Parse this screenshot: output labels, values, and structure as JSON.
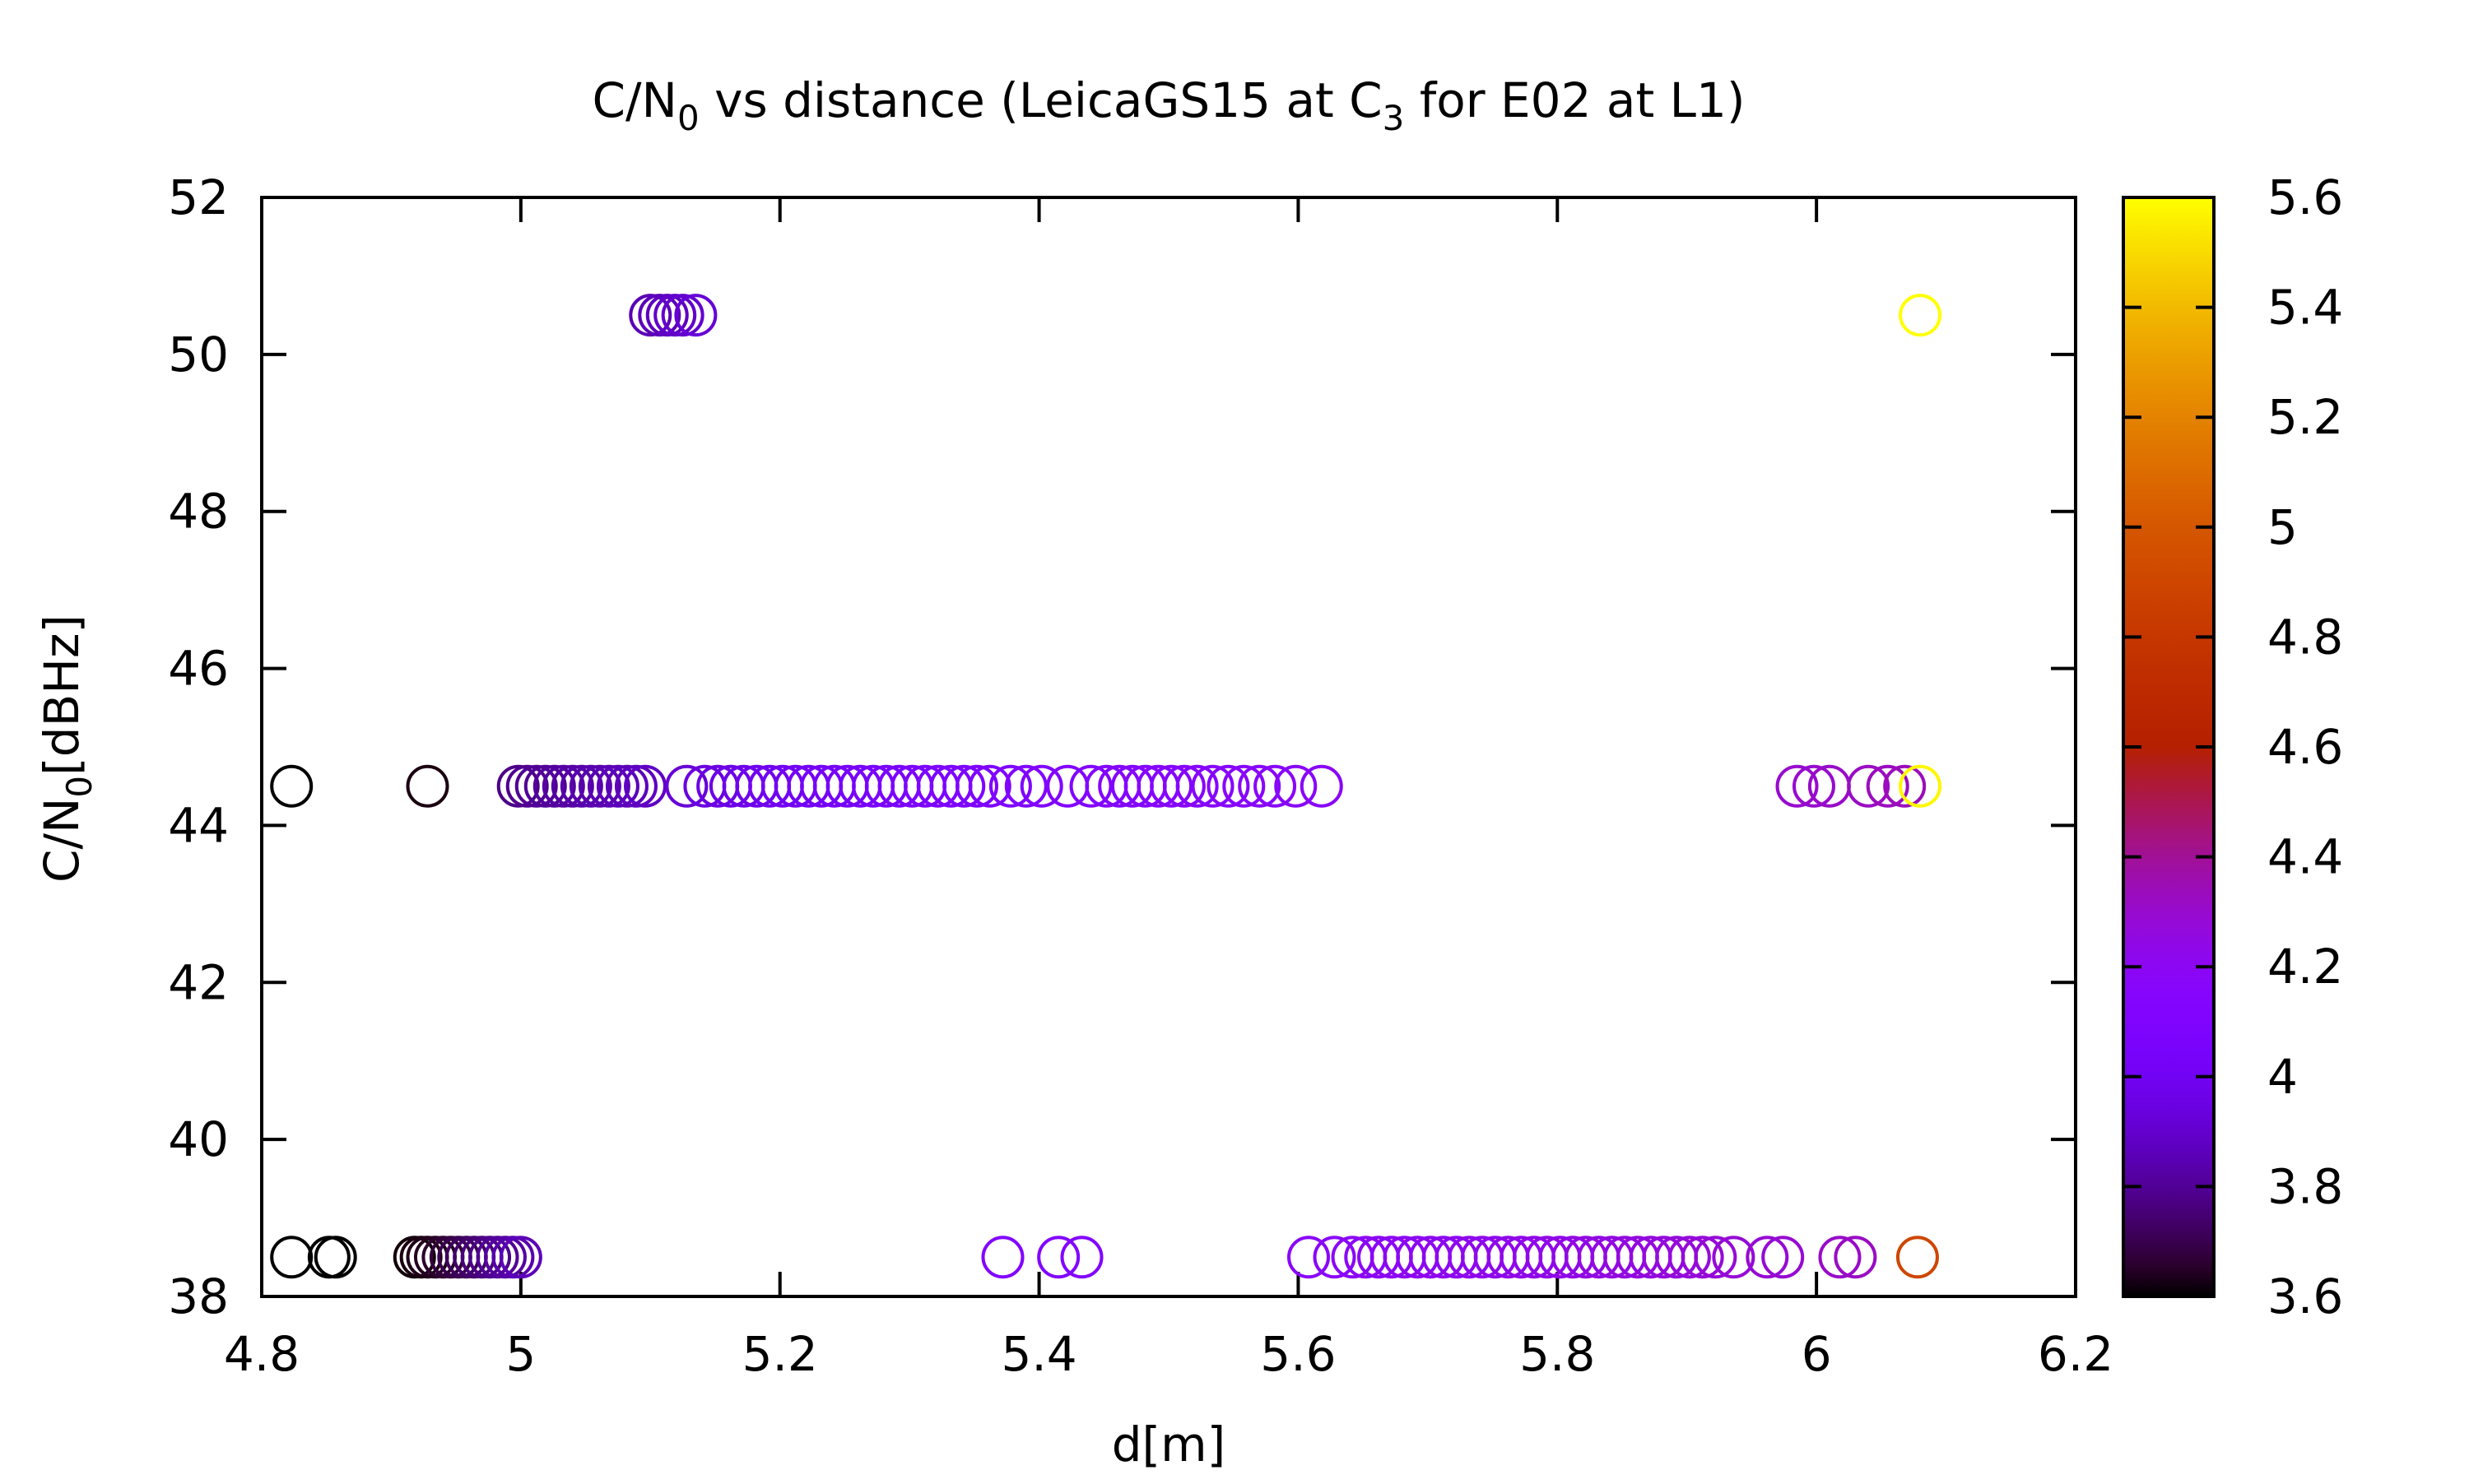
{
  "chart_data": {
    "type": "scatter",
    "title": {
      "prefix": "C/N",
      "sub1": "0",
      "middle": " vs distance (LeicaGS15 at C",
      "sub2": "3",
      "suffix": " for E02 at L1)"
    },
    "xlabel": "d[m]",
    "ylabel": {
      "prefix": "C/N",
      "sub": "0",
      "suffix": "[dBHz]"
    },
    "xlim": [
      4.8,
      6.2
    ],
    "ylim": [
      38,
      52
    ],
    "x_ticks": [
      4.8,
      5.0,
      5.2,
      5.4,
      5.6,
      5.8,
      6.0,
      6.2
    ],
    "x_tick_labels": [
      "4.8",
      "5",
      "5.2",
      "5.4",
      "5.6",
      "5.8",
      "6",
      "6.2"
    ],
    "y_ticks": [
      38,
      40,
      42,
      44,
      46,
      48,
      50,
      52
    ],
    "y_tick_labels": [
      "38",
      "40",
      "42",
      "44",
      "46",
      "48",
      "50",
      "52"
    ],
    "colorbar": {
      "range": [
        3.6,
        5.6
      ],
      "ticks": [
        3.6,
        3.8,
        4.0,
        4.2,
        4.4,
        4.6,
        4.8,
        5.0,
        5.2,
        5.4,
        5.6
      ],
      "tick_labels": [
        "3.6",
        "3.8",
        "4",
        "4.2",
        "4.4",
        "4.6",
        "4.8",
        "5",
        "5.2",
        "5.4",
        "5.6"
      ],
      "palette": "gnuplot (black-purple-red-yellow)"
    },
    "marker": "open circle",
    "grid": false,
    "legend": "none",
    "points": [
      {
        "x": 5.1,
        "y": 50.5,
        "c": 3.85
      },
      {
        "x": 5.107,
        "y": 50.5,
        "c": 3.86
      },
      {
        "x": 5.113,
        "y": 50.5,
        "c": 3.87
      },
      {
        "x": 5.119,
        "y": 50.5,
        "c": 3.89
      },
      {
        "x": 5.125,
        "y": 50.5,
        "c": 3.9
      },
      {
        "x": 5.135,
        "y": 50.5,
        "c": 3.92
      },
      {
        "x": 6.08,
        "y": 50.5,
        "c": 5.6
      },
      {
        "x": 4.823,
        "y": 44.5,
        "c": 3.6
      },
      {
        "x": 4.928,
        "y": 44.5,
        "c": 3.62
      },
      {
        "x": 4.998,
        "y": 44.5,
        "c": 3.78
      },
      {
        "x": 5.005,
        "y": 44.5,
        "c": 3.79
      },
      {
        "x": 5.012,
        "y": 44.5,
        "c": 3.8
      },
      {
        "x": 5.019,
        "y": 44.5,
        "c": 3.8
      },
      {
        "x": 5.026,
        "y": 44.5,
        "c": 3.81
      },
      {
        "x": 5.033,
        "y": 44.5,
        "c": 3.82
      },
      {
        "x": 5.04,
        "y": 44.5,
        "c": 3.82
      },
      {
        "x": 5.047,
        "y": 44.5,
        "c": 3.83
      },
      {
        "x": 5.054,
        "y": 44.5,
        "c": 3.84
      },
      {
        "x": 5.061,
        "y": 44.5,
        "c": 3.84
      },
      {
        "x": 5.068,
        "y": 44.5,
        "c": 3.85
      },
      {
        "x": 5.075,
        "y": 44.5,
        "c": 3.86
      },
      {
        "x": 5.082,
        "y": 44.5,
        "c": 3.86
      },
      {
        "x": 5.089,
        "y": 44.5,
        "c": 3.87
      },
      {
        "x": 5.096,
        "y": 44.5,
        "c": 3.88
      },
      {
        "x": 5.128,
        "y": 44.5,
        "c": 3.92
      },
      {
        "x": 5.142,
        "y": 44.5,
        "c": 3.94
      },
      {
        "x": 5.152,
        "y": 44.5,
        "c": 3.95
      },
      {
        "x": 5.162,
        "y": 44.5,
        "c": 3.96
      },
      {
        "x": 5.172,
        "y": 44.5,
        "c": 3.97
      },
      {
        "x": 5.182,
        "y": 44.5,
        "c": 3.98
      },
      {
        "x": 5.192,
        "y": 44.5,
        "c": 3.99
      },
      {
        "x": 5.202,
        "y": 44.5,
        "c": 4.0
      },
      {
        "x": 5.212,
        "y": 44.5,
        "c": 4.0
      },
      {
        "x": 5.222,
        "y": 44.5,
        "c": 4.01
      },
      {
        "x": 5.232,
        "y": 44.5,
        "c": 4.02
      },
      {
        "x": 5.242,
        "y": 44.5,
        "c": 4.03
      },
      {
        "x": 5.252,
        "y": 44.5,
        "c": 4.03
      },
      {
        "x": 5.262,
        "y": 44.5,
        "c": 4.04
      },
      {
        "x": 5.272,
        "y": 44.5,
        "c": 4.05
      },
      {
        "x": 5.282,
        "y": 44.5,
        "c": 4.05
      },
      {
        "x": 5.292,
        "y": 44.5,
        "c": 4.06
      },
      {
        "x": 5.302,
        "y": 44.5,
        "c": 4.07
      },
      {
        "x": 5.312,
        "y": 44.5,
        "c": 4.07
      },
      {
        "x": 5.322,
        "y": 44.5,
        "c": 4.08
      },
      {
        "x": 5.332,
        "y": 44.5,
        "c": 4.08
      },
      {
        "x": 5.342,
        "y": 44.5,
        "c": 4.09
      },
      {
        "x": 5.352,
        "y": 44.5,
        "c": 4.09
      },
      {
        "x": 5.362,
        "y": 44.5,
        "c": 4.1
      },
      {
        "x": 5.378,
        "y": 44.5,
        "c": 4.1
      },
      {
        "x": 5.39,
        "y": 44.5,
        "c": 4.11
      },
      {
        "x": 5.402,
        "y": 44.5,
        "c": 4.11
      },
      {
        "x": 5.422,
        "y": 44.5,
        "c": 4.12
      },
      {
        "x": 5.44,
        "y": 44.5,
        "c": 4.12
      },
      {
        "x": 5.452,
        "y": 44.5,
        "c": 4.13
      },
      {
        "x": 5.462,
        "y": 44.5,
        "c": 4.13
      },
      {
        "x": 5.472,
        "y": 44.5,
        "c": 4.13
      },
      {
        "x": 5.482,
        "y": 44.5,
        "c": 4.14
      },
      {
        "x": 5.492,
        "y": 44.5,
        "c": 4.14
      },
      {
        "x": 5.502,
        "y": 44.5,
        "c": 4.14
      },
      {
        "x": 5.512,
        "y": 44.5,
        "c": 4.15
      },
      {
        "x": 5.522,
        "y": 44.5,
        "c": 4.15
      },
      {
        "x": 5.534,
        "y": 44.5,
        "c": 4.15
      },
      {
        "x": 5.546,
        "y": 44.5,
        "c": 4.16
      },
      {
        "x": 5.558,
        "y": 44.5,
        "c": 4.16
      },
      {
        "x": 5.57,
        "y": 44.5,
        "c": 4.16
      },
      {
        "x": 5.582,
        "y": 44.5,
        "c": 4.17
      },
      {
        "x": 5.598,
        "y": 44.5,
        "c": 4.17
      },
      {
        "x": 5.618,
        "y": 44.5,
        "c": 4.18
      },
      {
        "x": 5.985,
        "y": 44.5,
        "c": 4.3
      },
      {
        "x": 5.998,
        "y": 44.5,
        "c": 4.3
      },
      {
        "x": 6.01,
        "y": 44.5,
        "c": 4.31
      },
      {
        "x": 6.04,
        "y": 44.5,
        "c": 4.32
      },
      {
        "x": 6.055,
        "y": 44.5,
        "c": 4.33
      },
      {
        "x": 6.068,
        "y": 44.5,
        "c": 4.34
      },
      {
        "x": 6.08,
        "y": 44.5,
        "c": 5.58
      },
      {
        "x": 4.823,
        "y": 38.5,
        "c": 3.6
      },
      {
        "x": 4.852,
        "y": 38.5,
        "c": 3.6
      },
      {
        "x": 4.857,
        "y": 38.5,
        "c": 3.6
      },
      {
        "x": 4.918,
        "y": 38.5,
        "c": 3.61
      },
      {
        "x": 4.923,
        "y": 38.5,
        "c": 3.62
      },
      {
        "x": 4.928,
        "y": 38.5,
        "c": 3.63
      },
      {
        "x": 4.934,
        "y": 38.5,
        "c": 3.64
      },
      {
        "x": 4.94,
        "y": 38.5,
        "c": 3.66
      },
      {
        "x": 4.946,
        "y": 38.5,
        "c": 3.68
      },
      {
        "x": 4.952,
        "y": 38.5,
        "c": 3.7
      },
      {
        "x": 4.958,
        "y": 38.5,
        "c": 3.72
      },
      {
        "x": 4.964,
        "y": 38.5,
        "c": 3.74
      },
      {
        "x": 4.97,
        "y": 38.5,
        "c": 3.76
      },
      {
        "x": 4.976,
        "y": 38.5,
        "c": 3.78
      },
      {
        "x": 4.982,
        "y": 38.5,
        "c": 3.8
      },
      {
        "x": 4.988,
        "y": 38.5,
        "c": 3.82
      },
      {
        "x": 4.994,
        "y": 38.5,
        "c": 3.84
      },
      {
        "x": 5.0,
        "y": 38.5,
        "c": 3.86
      },
      {
        "x": 5.372,
        "y": 38.5,
        "c": 4.12
      },
      {
        "x": 5.415,
        "y": 38.5,
        "c": 4.13
      },
      {
        "x": 5.433,
        "y": 38.5,
        "c": 4.13
      },
      {
        "x": 5.608,
        "y": 38.5,
        "c": 4.18
      },
      {
        "x": 5.628,
        "y": 38.5,
        "c": 4.18
      },
      {
        "x": 5.642,
        "y": 38.5,
        "c": 4.19
      },
      {
        "x": 5.652,
        "y": 38.5,
        "c": 4.19
      },
      {
        "x": 5.662,
        "y": 38.5,
        "c": 4.19
      },
      {
        "x": 5.672,
        "y": 38.5,
        "c": 4.2
      },
      {
        "x": 5.682,
        "y": 38.5,
        "c": 4.2
      },
      {
        "x": 5.692,
        "y": 38.5,
        "c": 4.2
      },
      {
        "x": 5.702,
        "y": 38.5,
        "c": 4.21
      },
      {
        "x": 5.712,
        "y": 38.5,
        "c": 4.21
      },
      {
        "x": 5.722,
        "y": 38.5,
        "c": 4.21
      },
      {
        "x": 5.732,
        "y": 38.5,
        "c": 4.22
      },
      {
        "x": 5.742,
        "y": 38.5,
        "c": 4.22
      },
      {
        "x": 5.752,
        "y": 38.5,
        "c": 4.22
      },
      {
        "x": 5.762,
        "y": 38.5,
        "c": 4.23
      },
      {
        "x": 5.772,
        "y": 38.5,
        "c": 4.23
      },
      {
        "x": 5.782,
        "y": 38.5,
        "c": 4.23
      },
      {
        "x": 5.792,
        "y": 38.5,
        "c": 4.24
      },
      {
        "x": 5.802,
        "y": 38.5,
        "c": 4.24
      },
      {
        "x": 5.812,
        "y": 38.5,
        "c": 4.24
      },
      {
        "x": 5.822,
        "y": 38.5,
        "c": 4.25
      },
      {
        "x": 5.832,
        "y": 38.5,
        "c": 4.25
      },
      {
        "x": 5.842,
        "y": 38.5,
        "c": 4.25
      },
      {
        "x": 5.852,
        "y": 38.5,
        "c": 4.26
      },
      {
        "x": 5.862,
        "y": 38.5,
        "c": 4.26
      },
      {
        "x": 5.872,
        "y": 38.5,
        "c": 4.26
      },
      {
        "x": 5.882,
        "y": 38.5,
        "c": 4.27
      },
      {
        "x": 5.892,
        "y": 38.5,
        "c": 4.27
      },
      {
        "x": 5.902,
        "y": 38.5,
        "c": 4.27
      },
      {
        "x": 5.912,
        "y": 38.5,
        "c": 4.28
      },
      {
        "x": 5.922,
        "y": 38.5,
        "c": 4.28
      },
      {
        "x": 5.936,
        "y": 38.5,
        "c": 4.28
      },
      {
        "x": 5.962,
        "y": 38.5,
        "c": 4.29
      },
      {
        "x": 5.974,
        "y": 38.5,
        "c": 4.29
      },
      {
        "x": 6.018,
        "y": 38.5,
        "c": 4.31
      },
      {
        "x": 6.03,
        "y": 38.5,
        "c": 4.32
      },
      {
        "x": 6.078,
        "y": 38.5,
        "c": 4.9
      }
    ]
  }
}
